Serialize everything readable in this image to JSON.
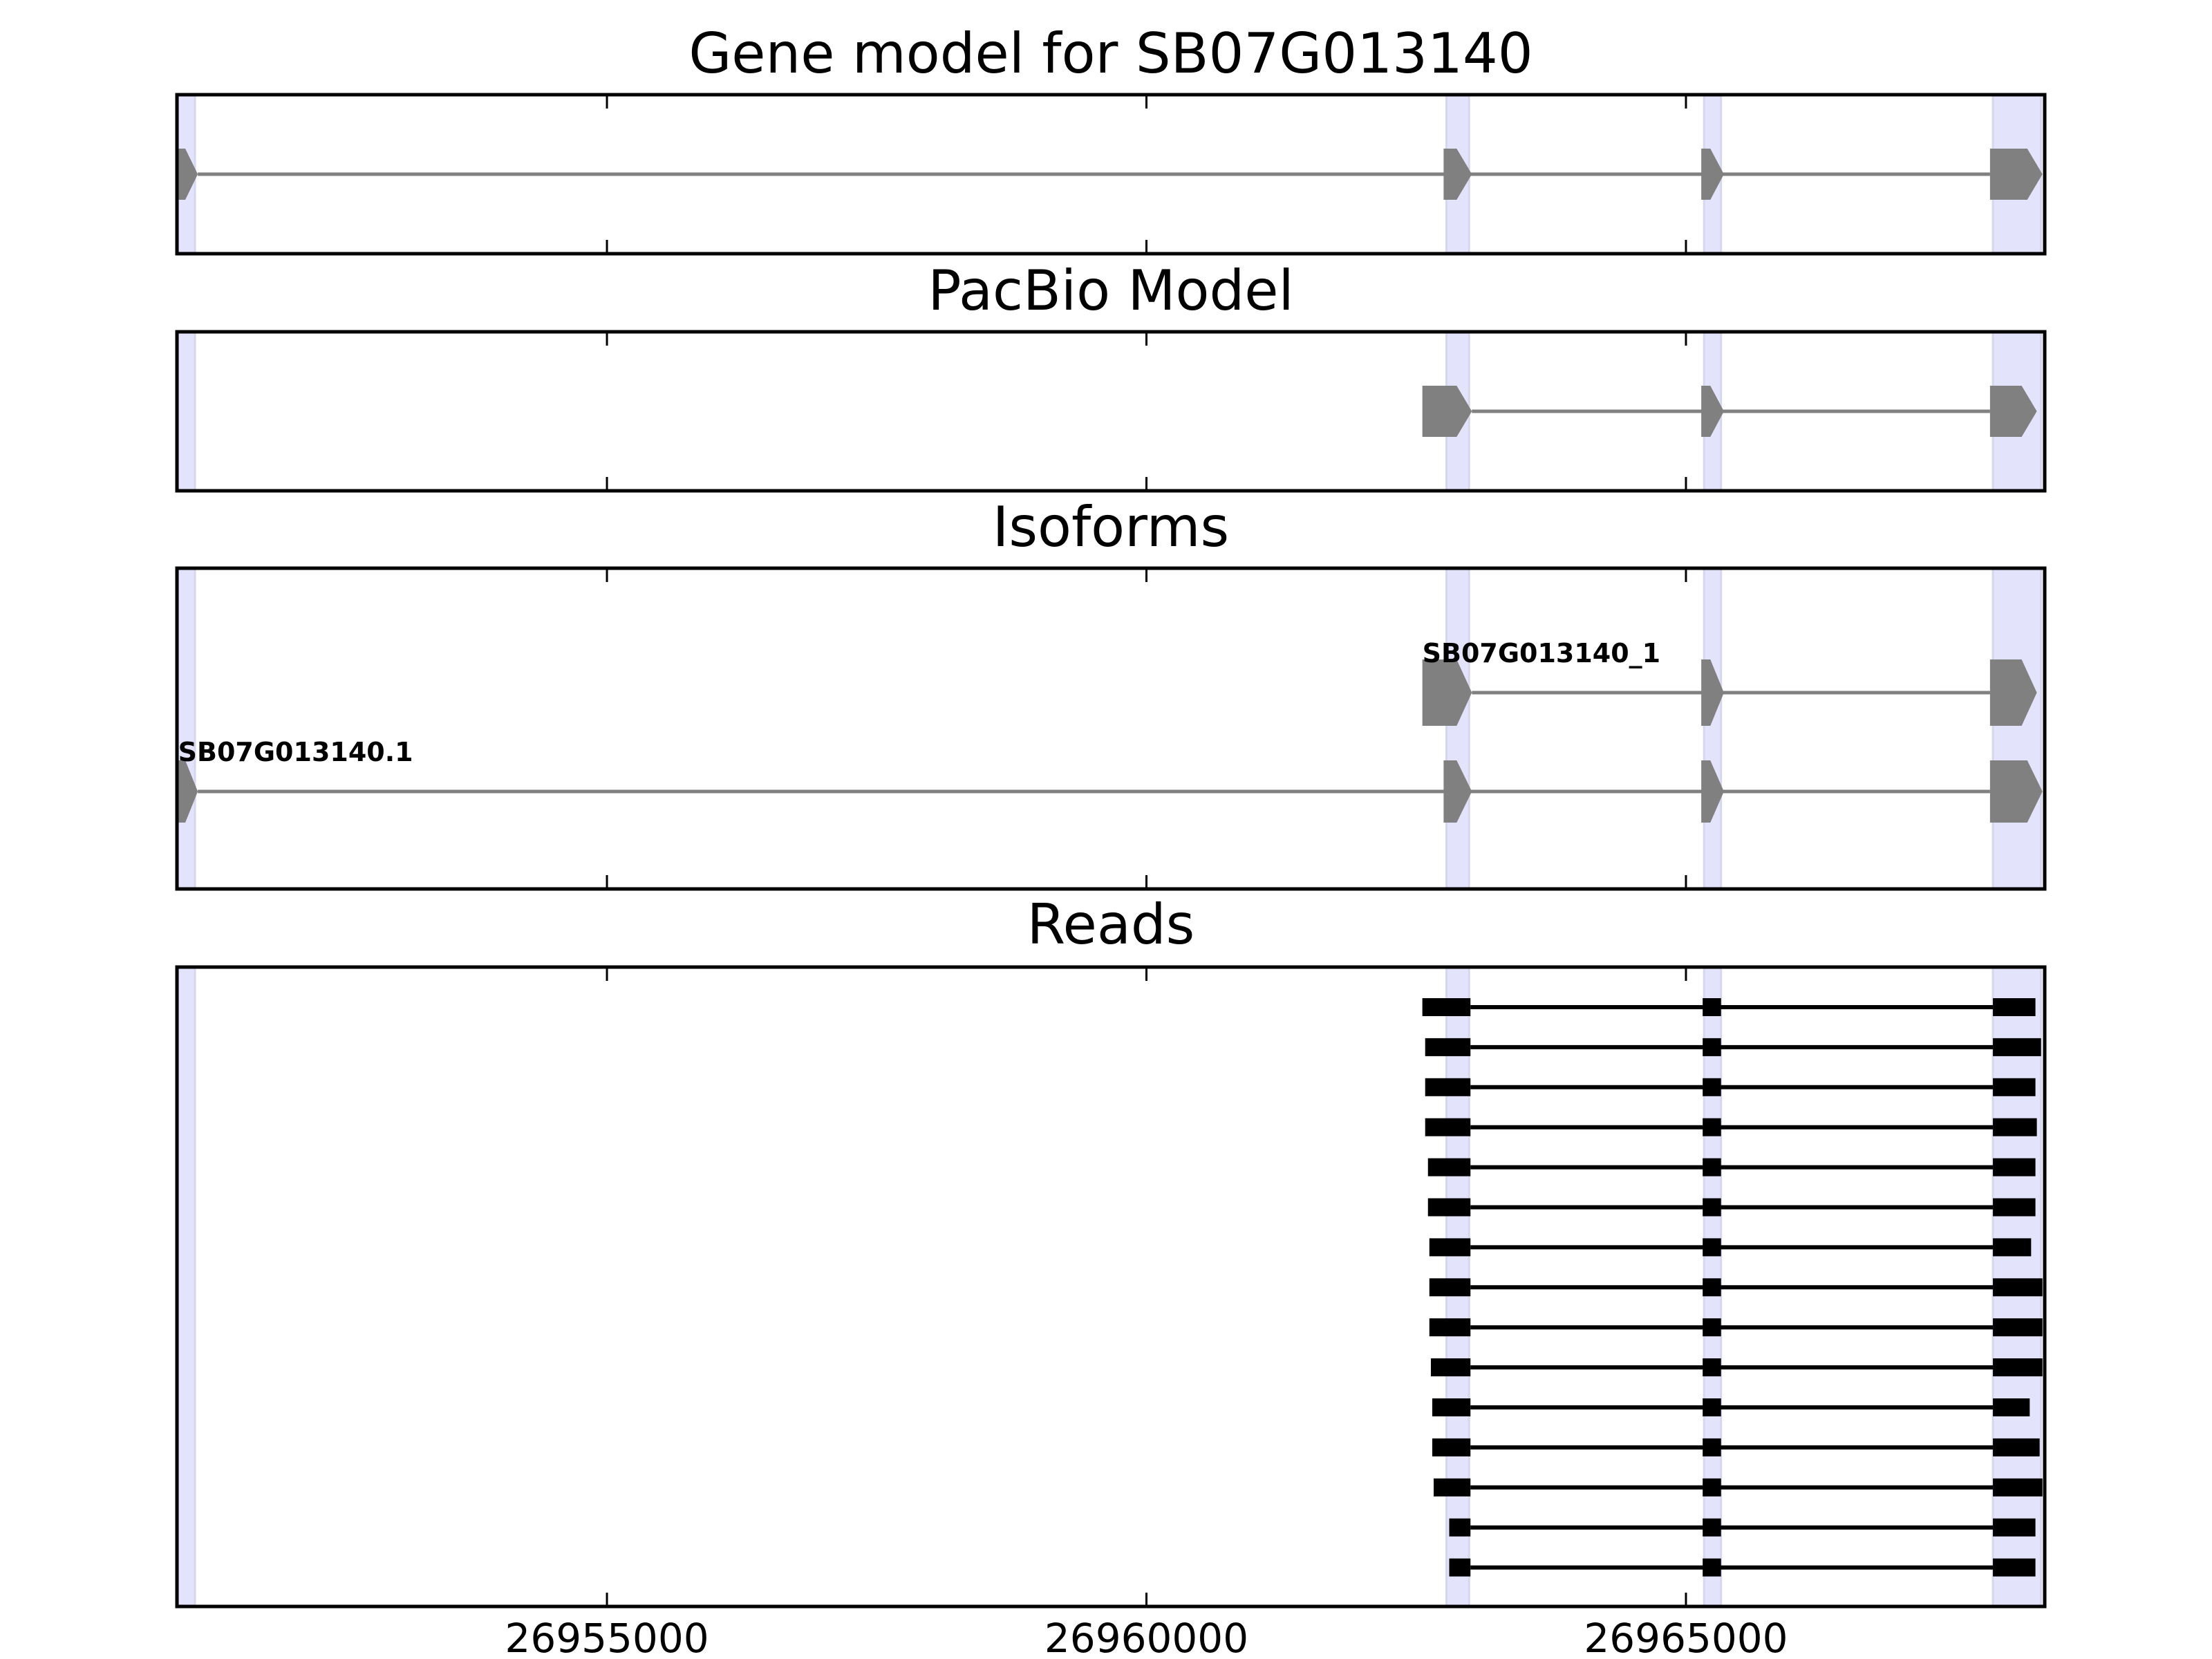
{
  "chart_data": {
    "type": "gene-model-tracks",
    "xlim": [
      26951015,
      26968325
    ],
    "xticks": [
      26955000,
      26960000,
      26965000
    ],
    "xtick_labels": [
      "26955000",
      "26960000",
      "26965000"
    ],
    "colors": {
      "exon": "#808080",
      "intron": "#808080",
      "read": "#000000",
      "highlight": "#e3e3fb",
      "axes": "#000000"
    },
    "highlight_regions": [
      [
        26951024,
        26951182
      ],
      [
        26962780,
        26962990
      ],
      [
        26965168,
        26965325
      ],
      [
        26967845,
        26968291
      ]
    ],
    "panels": [
      {
        "title": "Gene model for SB07G013140",
        "models": [
          {
            "label": "",
            "strand": "+",
            "exons": [
              [
                26951000,
                26951208
              ],
              [
                26962754,
                26963016
              ],
              [
                26965142,
                26965352
              ],
              [
                26967818,
                26968304
              ]
            ]
          }
        ]
      },
      {
        "title": "PacBio Model",
        "models": [
          {
            "label": "",
            "strand": "+",
            "exons": [
              [
                26962557,
                26963016
              ],
              [
                26965142,
                26965352
              ],
              [
                26967818,
                26968252
              ]
            ]
          }
        ]
      },
      {
        "title": "Isoforms",
        "models": [
          {
            "label": "SB07G013140_1",
            "strand": "+",
            "exons": [
              [
                26962557,
                26963016
              ],
              [
                26965142,
                26965352
              ],
              [
                26967818,
                26968252
              ]
            ]
          },
          {
            "label": "SB07G013140.1",
            "strand": "+",
            "exons": [
              [
                26951000,
                26951208
              ],
              [
                26962754,
                26963016
              ],
              [
                26965142,
                26965352
              ],
              [
                26967818,
                26968304
              ]
            ]
          }
        ]
      },
      {
        "title": "Reads",
        "reads": [
          [
            [
              26962557,
              26963003
            ],
            [
              26965155,
              26965325
            ],
            [
              26967845,
              26968239
            ]
          ],
          [
            [
              26962583,
              26963003
            ],
            [
              26965155,
              26965325
            ],
            [
              26967845,
              26968291
            ]
          ],
          [
            [
              26962583,
              26963003
            ],
            [
              26965155,
              26965325
            ],
            [
              26967845,
              26968239
            ]
          ],
          [
            [
              26962583,
              26963003
            ],
            [
              26965155,
              26965325
            ],
            [
              26967845,
              26968252
            ]
          ],
          [
            [
              26962609,
              26963003
            ],
            [
              26965155,
              26965325
            ],
            [
              26967845,
              26968239
            ]
          ],
          [
            [
              26962609,
              26963003
            ],
            [
              26965155,
              26965325
            ],
            [
              26967845,
              26968239
            ]
          ],
          [
            [
              26962622,
              26963003
            ],
            [
              26965155,
              26965325
            ],
            [
              26967845,
              26968199
            ]
          ],
          [
            [
              26962622,
              26963003
            ],
            [
              26965155,
              26965325
            ],
            [
              26967845,
              26968304
            ]
          ],
          [
            [
              26962622,
              26963003
            ],
            [
              26965155,
              26965325
            ],
            [
              26967845,
              26968304
            ]
          ],
          [
            [
              26962636,
              26963003
            ],
            [
              26965155,
              26965325
            ],
            [
              26967845,
              26968304
            ]
          ],
          [
            [
              26962649,
              26963003
            ],
            [
              26965155,
              26965325
            ],
            [
              26967845,
              26968186
            ]
          ],
          [
            [
              26962649,
              26963003
            ],
            [
              26965155,
              26965325
            ],
            [
              26967845,
              26968278
            ]
          ],
          [
            [
              26962662,
              26963003
            ],
            [
              26965155,
              26965325
            ],
            [
              26967845,
              26968304
            ]
          ],
          [
            [
              26962806,
              26963003
            ],
            [
              26965155,
              26965325
            ],
            [
              26967845,
              26968239
            ]
          ],
          [
            [
              26962806,
              26963003
            ],
            [
              26965155,
              26965325
            ],
            [
              26967845,
              26968239
            ]
          ]
        ]
      }
    ]
  }
}
